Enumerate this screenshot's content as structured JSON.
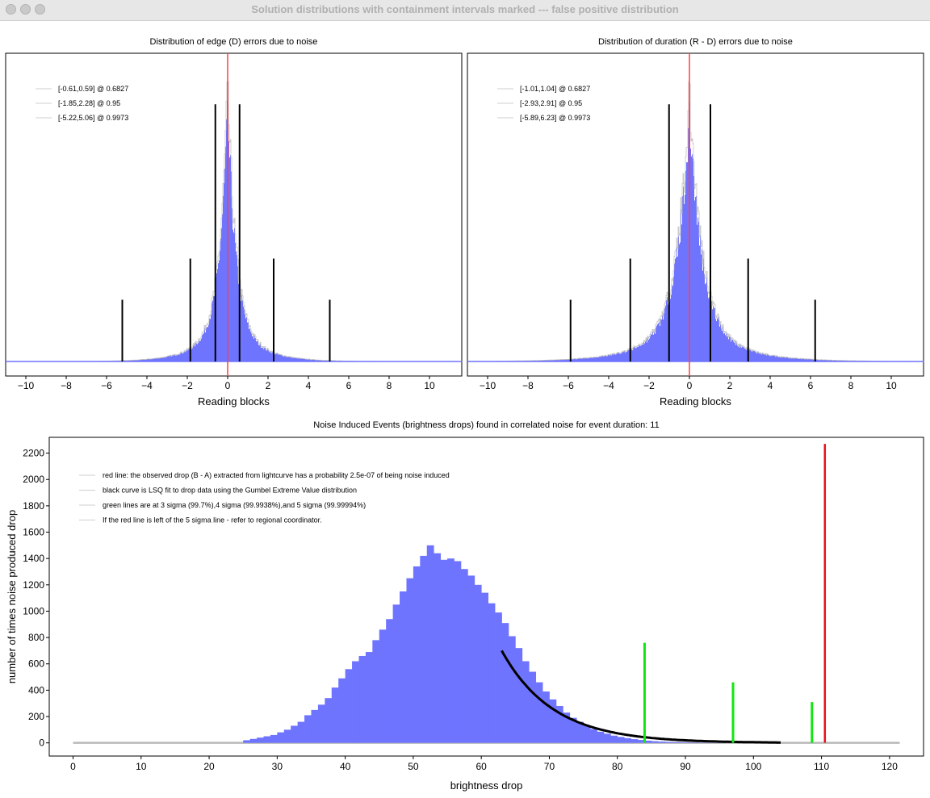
{
  "window": {
    "title": "Solution distributions with containment intervals marked --- false positive distribution"
  },
  "chart_data": [
    {
      "id": "edge",
      "type": "histogram",
      "title": "Distribution of edge (D) errors due to noise",
      "xlabel": "Reading blocks",
      "ylabel": "",
      "xlim": [
        -11,
        11.6
      ],
      "xticks": [
        -10,
        -8,
        -6,
        -4,
        -2,
        0,
        2,
        4,
        6,
        8,
        10
      ],
      "distribution_shape": "peaked (Laplace-like), centered at 0, unit width",
      "legend": [
        "[-0.61,0.59] @ 0.6827",
        "[-1.85,2.28] @ 0.95",
        "[-5.22,5.06] @ 0.9973"
      ],
      "legend_position": "top-left",
      "interval_markers": [
        {
          "lo": -0.61,
          "hi": 0.59,
          "level": 0.6827
        },
        {
          "lo": -1.85,
          "hi": 2.28,
          "level": 0.95
        },
        {
          "lo": -5.22,
          "hi": 5.06,
          "level": 0.9973
        }
      ],
      "red_line_x": 0,
      "colors": {
        "bars": "#6f74ff",
        "outline": "#b9b9b9",
        "red_line": "#ff4040",
        "markers": "#000000"
      }
    },
    {
      "id": "duration",
      "type": "histogram",
      "title": "Distribution of duration (R - D) errors due to noise",
      "xlabel": "Reading blocks",
      "ylabel": "",
      "xlim": [
        -11,
        11.6
      ],
      "xticks": [
        -10,
        -8,
        -6,
        -4,
        -2,
        0,
        2,
        4,
        6,
        8,
        10
      ],
      "distribution_shape": "peaked, centered at 0, wider than edge distribution",
      "legend": [
        "[-1.01,1.04] @ 0.6827",
        "[-2.93,2.91] @ 0.95",
        "[-5.89,6.23] @ 0.9973"
      ],
      "legend_position": "top-left",
      "interval_markers": [
        {
          "lo": -1.01,
          "hi": 1.04,
          "level": 0.6827
        },
        {
          "lo": -2.93,
          "hi": 2.91,
          "level": 0.95
        },
        {
          "lo": -5.89,
          "hi": 6.23,
          "level": 0.9973
        }
      ],
      "red_line_x": 0,
      "colors": {
        "bars": "#6f74ff",
        "outline": "#b9b9b9",
        "red_line": "#ff4040",
        "markers": "#000000"
      }
    },
    {
      "id": "noise",
      "type": "histogram",
      "title": "Noise Induced Events (brightness drops) found in correlated noise for event duration: 11",
      "xlabel": "brightness drop",
      "ylabel": "number of times noise produced drop",
      "xlim": [
        -3.5,
        125
      ],
      "ylim": [
        -100,
        2320
      ],
      "xticks": [
        0,
        10,
        20,
        30,
        40,
        50,
        60,
        70,
        80,
        90,
        100,
        110,
        120
      ],
      "yticks": [
        0,
        200,
        400,
        600,
        800,
        1000,
        1200,
        1400,
        1600,
        1800,
        2000,
        2200
      ],
      "bins": [
        [
          25,
          20
        ],
        [
          26,
          30
        ],
        [
          27,
          40
        ],
        [
          28,
          50
        ],
        [
          29,
          60
        ],
        [
          30,
          80
        ],
        [
          31,
          100
        ],
        [
          32,
          130
        ],
        [
          33,
          160
        ],
        [
          34,
          210
        ],
        [
          35,
          250
        ],
        [
          36,
          290
        ],
        [
          37,
          340
        ],
        [
          38,
          420
        ],
        [
          39,
          490
        ],
        [
          40,
          560
        ],
        [
          41,
          620
        ],
        [
          42,
          660
        ],
        [
          43,
          690
        ],
        [
          44,
          780
        ],
        [
          45,
          860
        ],
        [
          46,
          940
        ],
        [
          47,
          1050
        ],
        [
          48,
          1150
        ],
        [
          49,
          1250
        ],
        [
          50,
          1340
        ],
        [
          51,
          1420
        ],
        [
          52,
          1500
        ],
        [
          53,
          1440
        ],
        [
          54,
          1390
        ],
        [
          55,
          1400
        ],
        [
          56,
          1380
        ],
        [
          57,
          1320
        ],
        [
          58,
          1270
        ],
        [
          59,
          1200
        ],
        [
          60,
          1140
        ],
        [
          61,
          1060
        ],
        [
          62,
          990
        ],
        [
          63,
          910
        ],
        [
          64,
          810
        ],
        [
          65,
          720
        ],
        [
          66,
          620
        ],
        [
          67,
          540
        ],
        [
          68,
          460
        ],
        [
          69,
          390
        ],
        [
          70,
          330
        ],
        [
          71,
          280
        ],
        [
          72,
          230
        ],
        [
          73,
          190
        ],
        [
          74,
          160
        ],
        [
          75,
          130
        ],
        [
          76,
          105
        ],
        [
          77,
          85
        ],
        [
          78,
          70
        ],
        [
          79,
          55
        ],
        [
          80,
          45
        ],
        [
          81,
          36
        ],
        [
          82,
          28
        ],
        [
          83,
          22
        ],
        [
          84,
          17
        ],
        [
          85,
          13
        ],
        [
          86,
          10
        ],
        [
          87,
          8
        ],
        [
          88,
          6
        ],
        [
          89,
          5
        ],
        [
          90,
          4
        ],
        [
          91,
          3
        ],
        [
          92,
          2
        ],
        [
          93,
          2
        ],
        [
          94,
          1
        ],
        [
          95,
          1
        ]
      ],
      "gumbel_fit": {
        "x_from": 63,
        "x_to": 104,
        "start_value": 700,
        "tail_value": 3
      },
      "green_lines": [
        {
          "x": 84,
          "height": 760,
          "label": "3 sigma (99.7%)"
        },
        {
          "x": 97,
          "height": 460,
          "label": "4 sigma (99.9938%)"
        },
        {
          "x": 108.6,
          "height": 310,
          "label": "5 sigma (99.99994%)"
        }
      ],
      "red_line": {
        "x": 110.5,
        "height": 2270
      },
      "legend": [
        "red line: the observed drop (B - A) extracted from lightcurve has a probability 2.5e-07 of being noise induced",
        "black curve is LSQ fit to drop data using the Gumbel Extreme Value distribution",
        "green lines are at 3 sigma (99.7%),4 sigma (99.9938%),and 5 sigma (99.99994%)",
        "If the red line is left of the 5 sigma line - refer to regional coordinator."
      ],
      "legend_position": "top-left",
      "colors": {
        "bars": "#6f74ff",
        "fit": "#000000",
        "green": "#12e612",
        "red": "#e8121a",
        "baseline": "#b9b9b9"
      }
    }
  ]
}
